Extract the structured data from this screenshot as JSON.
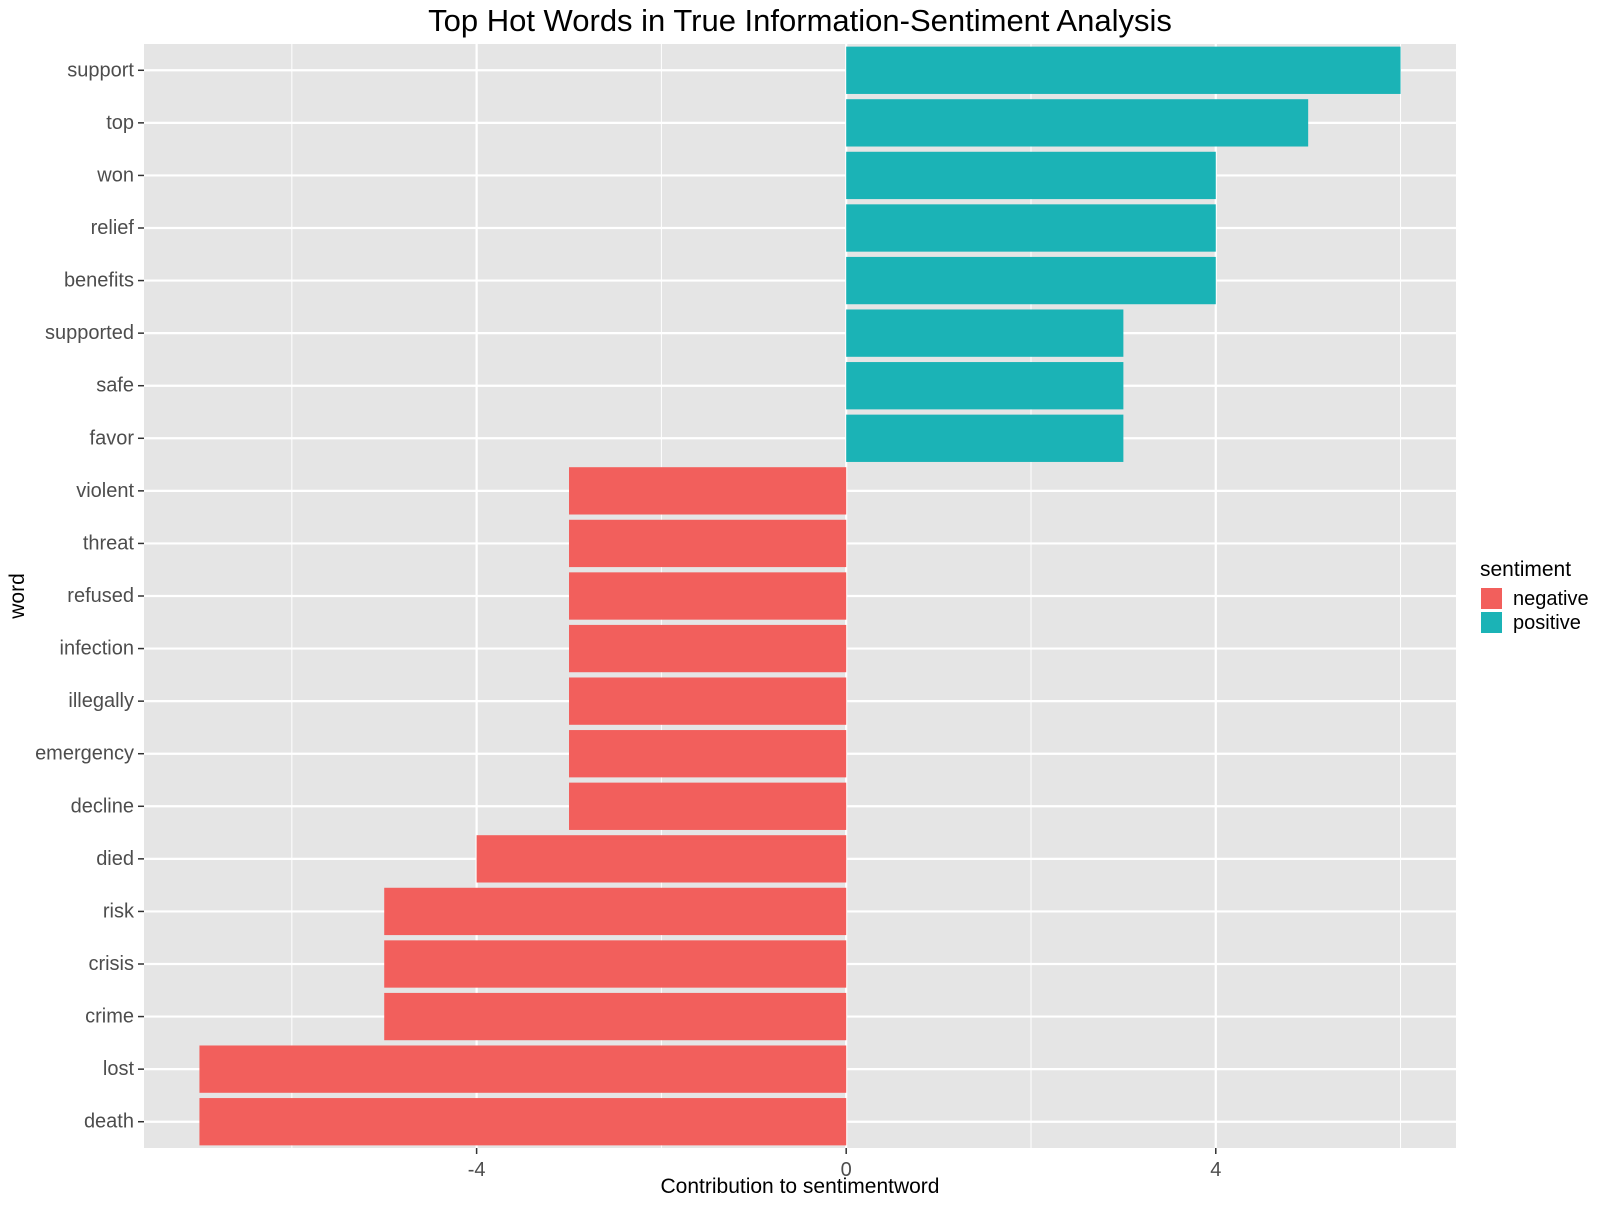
{
  "chart_data": {
    "type": "bar",
    "orientation": "horizontal",
    "title": "Top Hot Words in True Information-Sentiment Analysis",
    "xlabel": "Contribution to sentimentword",
    "ylabel": "word",
    "xlim": [
      -7.6,
      6.6
    ],
    "xticks": [
      -4,
      0,
      4
    ],
    "xtick_labels": [
      "-4",
      "0",
      "4"
    ],
    "grid": true,
    "legend": {
      "title": "sentiment",
      "position": "right",
      "entries": [
        {
          "name": "negative",
          "color": "#F25F5C"
        },
        {
          "name": "positive",
          "color": "#1BB3B6"
        }
      ]
    },
    "categories": [
      "support",
      "top",
      "won",
      "relief",
      "benefits",
      "supported",
      "safe",
      "favor",
      "violent",
      "threat",
      "refused",
      "infection",
      "illegally",
      "emergency",
      "decline",
      "died",
      "risk",
      "crisis",
      "crime",
      "lost",
      "death"
    ],
    "values": [
      6,
      5,
      4,
      4,
      4,
      3,
      3,
      3,
      -3,
      -3,
      -3,
      -3,
      -3,
      -3,
      -3,
      -4,
      -5,
      -5,
      -5,
      -7,
      -7
    ],
    "sentiment": [
      "positive",
      "positive",
      "positive",
      "positive",
      "positive",
      "positive",
      "positive",
      "positive",
      "negative",
      "negative",
      "negative",
      "negative",
      "negative",
      "negative",
      "negative",
      "negative",
      "negative",
      "negative",
      "negative",
      "negative",
      "negative"
    ]
  },
  "colors": {
    "panel_bg": "#E5E5E5",
    "grid": "#FFFFFF",
    "negative": "#F25F5C",
    "positive": "#1BB3B6",
    "text": "#000000",
    "tick_text": "#4D4D4D"
  }
}
